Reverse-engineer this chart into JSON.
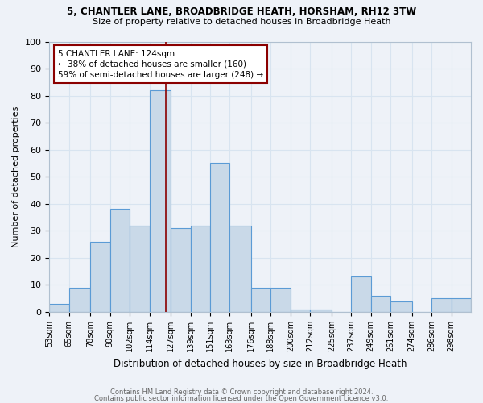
{
  "title1": "5, CHANTLER LANE, BROADBRIDGE HEATH, HORSHAM, RH12 3TW",
  "title2": "Size of property relative to detached houses in Broadbridge Heath",
  "xlabel": "Distribution of detached houses by size in Broadbridge Heath",
  "ylabel": "Number of detached properties",
  "footer1": "Contains HM Land Registry data © Crown copyright and database right 2024.",
  "footer2": "Contains public sector information licensed under the Open Government Licence v3.0.",
  "categories": [
    "53sqm",
    "65sqm",
    "78sqm",
    "90sqm",
    "102sqm",
    "114sqm",
    "127sqm",
    "139sqm",
    "151sqm",
    "163sqm",
    "176sqm",
    "188sqm",
    "200sqm",
    "212sqm",
    "225sqm",
    "237sqm",
    "249sqm",
    "261sqm",
    "274sqm",
    "286sqm",
    "298sqm"
  ],
  "values": [
    3,
    9,
    26,
    38,
    32,
    82,
    31,
    32,
    55,
    32,
    9,
    9,
    1,
    1,
    0,
    13,
    6,
    4,
    0,
    5,
    5
  ],
  "bar_color": "#c9d9e8",
  "bar_edge_color": "#5b9bd5",
  "property_line_x": 124,
  "bin_edges": [
    53,
    65,
    78,
    90,
    102,
    114,
    127,
    139,
    151,
    163,
    176,
    188,
    200,
    212,
    225,
    237,
    249,
    261,
    274,
    286,
    298,
    310
  ],
  "annotation_text": "5 CHANTLER LANE: 124sqm\n← 38% of detached houses are smaller (160)\n59% of semi-detached houses are larger (248) →",
  "annotation_box_color": "white",
  "annotation_box_edge": "darkred",
  "vline_color": "darkred",
  "ylim": [
    0,
    100
  ],
  "grid_color": "#d8e4f0",
  "background_color": "#eef2f8"
}
